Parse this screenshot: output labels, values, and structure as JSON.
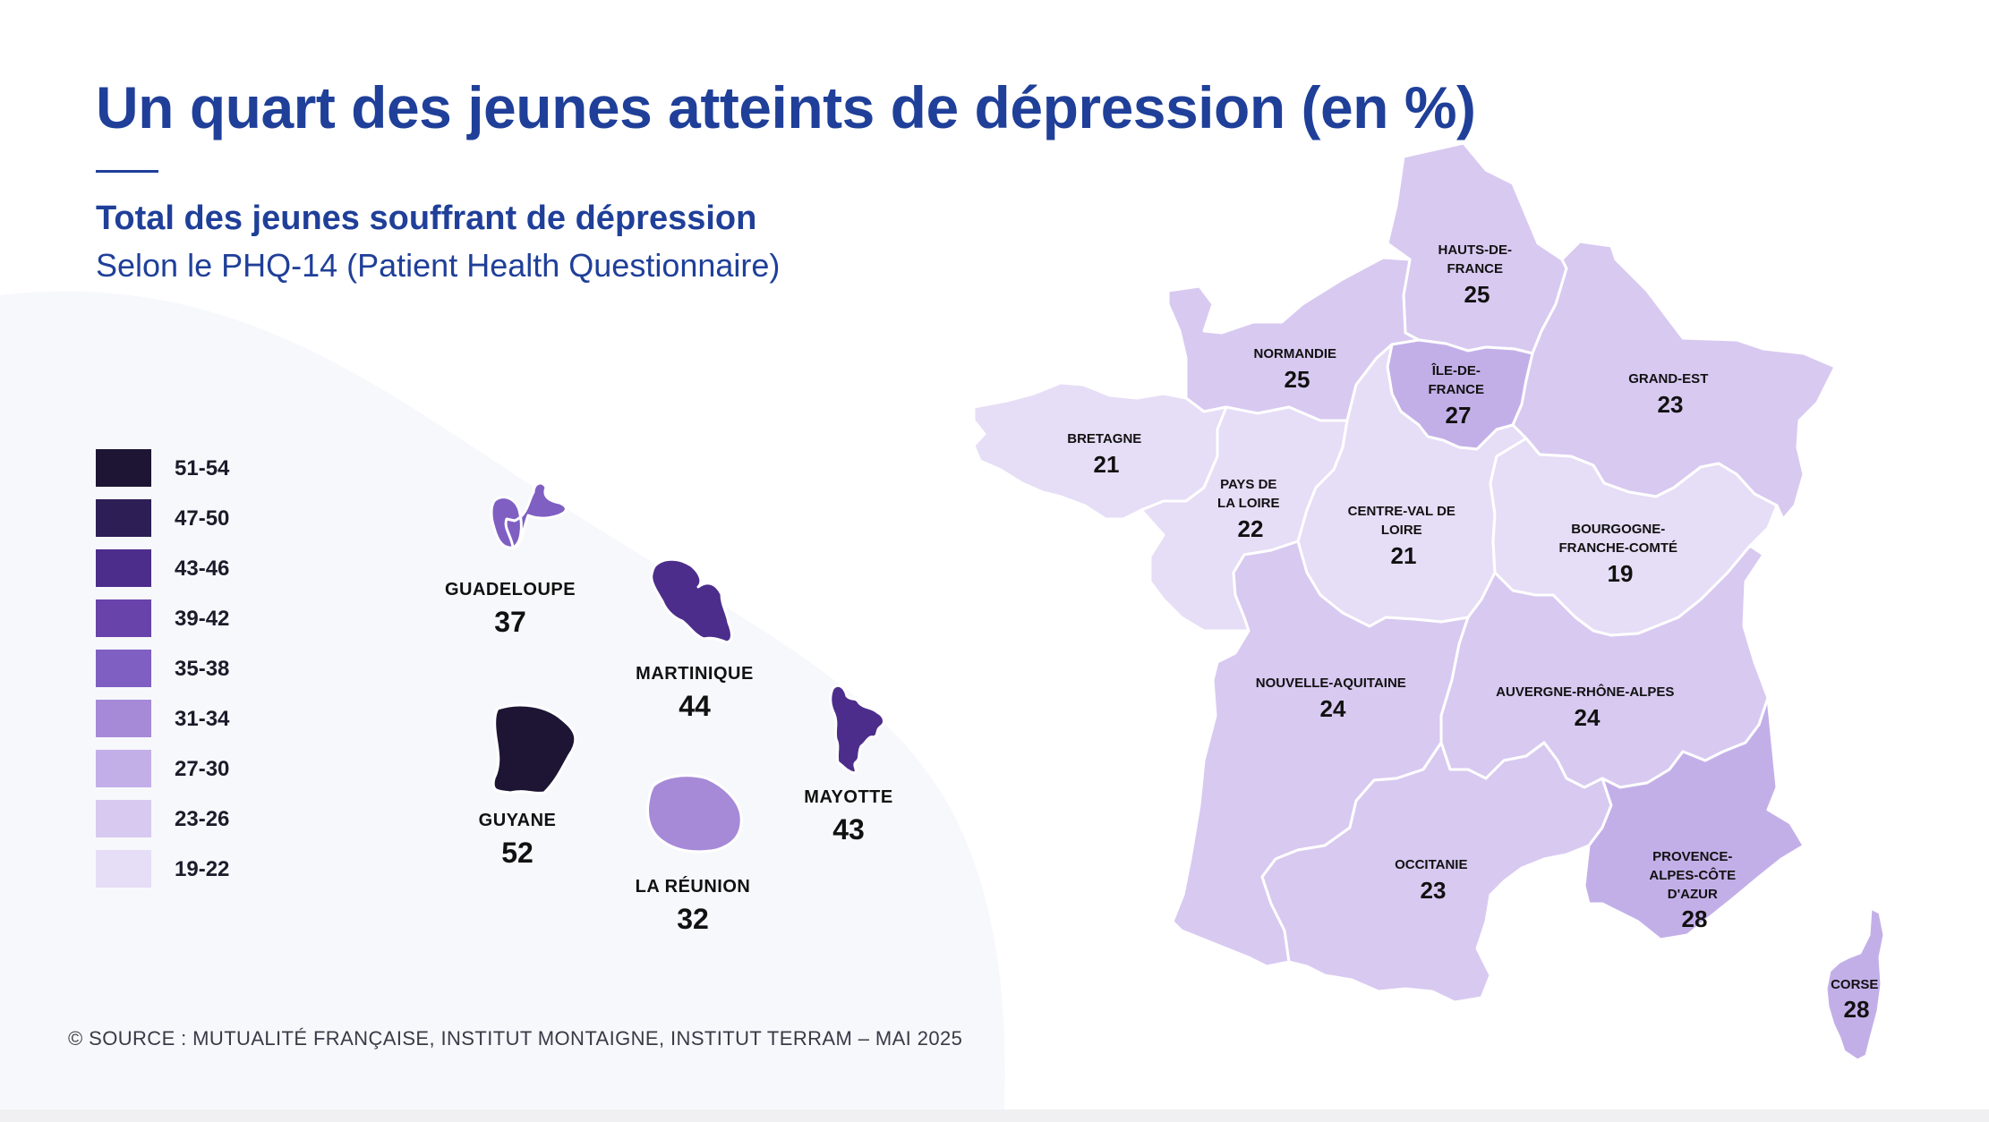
{
  "title": "Un quart des jeunes atteints de dépression (en %)",
  "subtitle": "Total des jeunes souffrant de dépression",
  "subnote": "Selon le PHQ-14 (Patient Health Questionnaire)",
  "legend": [
    {
      "label": "51-54",
      "color": "#1e1535"
    },
    {
      "label": "47-50",
      "color": "#2d1f56"
    },
    {
      "label": "43-46",
      "color": "#4c2d8c"
    },
    {
      "label": "39-42",
      "color": "#6843aa"
    },
    {
      "label": "35-38",
      "color": "#7f5fc2"
    },
    {
      "label": "31-34",
      "color": "#a68ad8"
    },
    {
      "label": "27-30",
      "color": "#c3afe8"
    },
    {
      "label": "23-26",
      "color": "#d8c9f1"
    },
    {
      "label": "19-22",
      "color": "#e6ddf6"
    }
  ],
  "overseas": {
    "guadeloupe": {
      "name": "GUADELOUPE",
      "value": "37",
      "color": "#7f5fc2"
    },
    "martinique": {
      "name": "MARTINIQUE",
      "value": "44",
      "color": "#4c2d8c"
    },
    "guyane": {
      "name": "GUYANE",
      "value": "52",
      "color": "#1e1535"
    },
    "la_reunion": {
      "name": "LA RÉUNION",
      "value": "32",
      "color": "#a68ad8"
    },
    "mayotte": {
      "name": "MAYOTTE",
      "value": "43",
      "color": "#4c2d8c"
    }
  },
  "regions": {
    "hauts_de_france": {
      "name": [
        "HAUTS-DE-",
        "FRANCE"
      ],
      "value": "25",
      "color": "#d8c9f1"
    },
    "normandie": {
      "name": [
        "NORMANDIE"
      ],
      "value": "25",
      "color": "#d8c9f1"
    },
    "ile_de_france": {
      "name": [
        "ÎLE-DE-",
        "FRANCE"
      ],
      "value": "27",
      "color": "#c3afe8"
    },
    "grand_est": {
      "name": [
        "GRAND-EST"
      ],
      "value": "23",
      "color": "#d8c9f1"
    },
    "bretagne": {
      "name": [
        "BRETAGNE"
      ],
      "value": "21",
      "color": "#e6ddf6"
    },
    "pays_de_la_loire": {
      "name": [
        "PAYS DE",
        "LA LOIRE"
      ],
      "value": "22",
      "color": "#e6ddf6"
    },
    "centre_val_de_loire": {
      "name": [
        "CENTRE-VAL DE",
        "LOIRE"
      ],
      "value": "21",
      "color": "#e6ddf6"
    },
    "bourgogne_franche_comte": {
      "name": [
        "BOURGOGNE-",
        "FRANCHE-COMTÉ"
      ],
      "value": "19",
      "color": "#e6ddf6"
    },
    "nouvelle_aquitaine": {
      "name": [
        "NOUVELLE-AQUITAINE"
      ],
      "value": "24",
      "color": "#d8c9f1"
    },
    "auvergne_rhone_alpes": {
      "name": [
        "AUVERGNE-RHÔNE-ALPES"
      ],
      "value": "24",
      "color": "#d8c9f1"
    },
    "occitanie": {
      "name": [
        "OCCITANIE"
      ],
      "value": "23",
      "color": "#d8c9f1"
    },
    "provence_alpes_cote_dazur": {
      "name": [
        "PROVENCE-",
        "ALPES-CÔTE",
        "D'AZUR"
      ],
      "value": "28",
      "color": "#c3afe8"
    },
    "corse": {
      "name": [
        "CORSE"
      ],
      "value": "28",
      "color": "#c3afe8"
    }
  },
  "source": "© SOURCE : MUTUALITÉ FRANÇAISE, INSTITUT MONTAIGNE, INSTITUT TERRAM – MAI 2025",
  "colors": {
    "title": "#1f3f99",
    "background_shape": "#f7f8fc"
  }
}
